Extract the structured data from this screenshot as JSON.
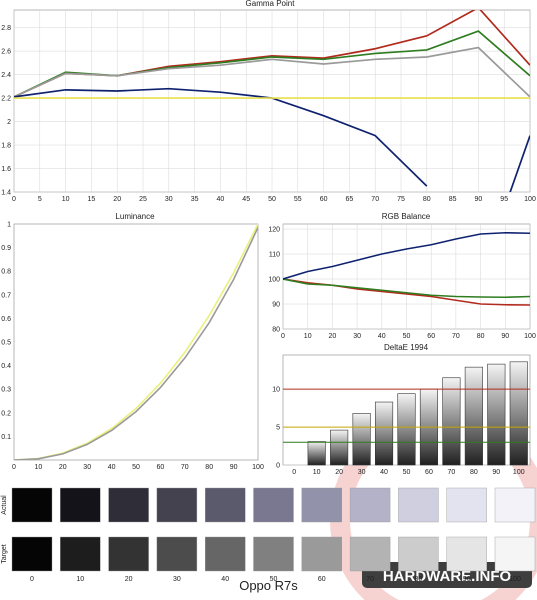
{
  "footer_label": "Oppo R7s",
  "watermark": {
    "text": "HARDWARE.INFO"
  },
  "colors": {
    "red": "#b22a1d",
    "green": "#2e7d1f",
    "gray": "#9a9a9a",
    "blue": "#0f2270",
    "yellow": "#e8e04a",
    "target": "#eaf07a"
  },
  "chart_data": [
    {
      "type": "line",
      "title": "Gamma Point",
      "x": [
        0,
        10,
        20,
        30,
        40,
        50,
        60,
        70,
        80,
        90,
        100
      ],
      "xticks": [
        0,
        5,
        10,
        15,
        20,
        25,
        30,
        35,
        40,
        45,
        50,
        55,
        60,
        65,
        70,
        75,
        80,
        85,
        90,
        95,
        100
      ],
      "yticks": [
        1.4,
        1.6,
        1.8,
        2,
        2.2,
        2.4,
        2.6,
        2.8
      ],
      "xlim": [
        0,
        100
      ],
      "ylim": [
        1.4,
        2.95
      ],
      "grid": true,
      "series": [
        {
          "color": "red",
          "values": [
            2.21,
            2.41,
            2.39,
            2.47,
            2.51,
            2.56,
            2.54,
            2.62,
            2.73,
            2.97,
            2.48
          ]
        },
        {
          "color": "green",
          "values": [
            2.21,
            2.42,
            2.39,
            2.46,
            2.5,
            2.55,
            2.53,
            2.58,
            2.61,
            2.77,
            2.39
          ]
        },
        {
          "color": "gray",
          "values": [
            2.21,
            2.41,
            2.39,
            2.45,
            2.48,
            2.53,
            2.49,
            2.53,
            2.55,
            2.63,
            2.21
          ]
        },
        {
          "color": "blue",
          "values": [
            2.21,
            2.27,
            2.26,
            2.28,
            2.25,
            2.2,
            2.05,
            1.88,
            1.45,
            null,
            1.88
          ],
          "extra_points": [
            [
              96,
              1.38
            ],
            [
              100,
              1.88
            ]
          ]
        },
        {
          "color": "yellow",
          "values": [
            2.2,
            2.2,
            2.2,
            2.2,
            2.2,
            2.2,
            2.2,
            2.2,
            2.2,
            2.2,
            2.2
          ]
        }
      ]
    },
    {
      "type": "line",
      "title": "Luminance",
      "x": [
        0,
        10,
        20,
        30,
        40,
        50,
        60,
        70,
        80,
        90,
        100
      ],
      "xticks": [
        0,
        10,
        20,
        30,
        40,
        50,
        60,
        70,
        80,
        90,
        100
      ],
      "yticks": [
        0.1,
        0.2,
        0.3,
        0.4,
        0.5,
        0.6,
        0.7,
        0.8,
        0.9,
        1
      ],
      "xlim": [
        0,
        100
      ],
      "ylim": [
        0,
        1
      ],
      "grid": false,
      "series": [
        {
          "color": "target",
          "values": [
            0,
            0.006,
            0.029,
            0.071,
            0.133,
            0.218,
            0.325,
            0.456,
            0.612,
            0.793,
            1.0
          ]
        },
        {
          "color": "gray",
          "values": [
            0,
            0.005,
            0.026,
            0.066,
            0.125,
            0.205,
            0.307,
            0.432,
            0.582,
            0.765,
            0.985
          ]
        }
      ]
    },
    {
      "type": "line",
      "title": "RGB Balance",
      "x": [
        0,
        10,
        20,
        30,
        40,
        50,
        60,
        70,
        80,
        90,
        100
      ],
      "xticks": [
        0,
        10,
        20,
        30,
        40,
        50,
        60,
        70,
        80,
        90,
        100
      ],
      "yticks": [
        80,
        90,
        100,
        110,
        120
      ],
      "xlim": [
        0,
        100
      ],
      "ylim": [
        80,
        122
      ],
      "grid": true,
      "series": [
        {
          "color": "red",
          "values": [
            100,
            98.5,
            97.5,
            96,
            95,
            94,
            93,
            91.5,
            90,
            89.7,
            89.6
          ]
        },
        {
          "color": "green",
          "values": [
            100,
            98,
            97.5,
            96.5,
            95.5,
            94.5,
            93.5,
            93,
            92.8,
            92.7,
            93
          ]
        },
        {
          "color": "blue",
          "values": [
            100,
            103,
            105,
            107.5,
            110,
            112,
            113.7,
            116,
            118,
            118.5,
            118.3
          ]
        }
      ]
    },
    {
      "type": "bar",
      "title": "DeltaE 1994",
      "categories": [
        "0",
        "10",
        "20",
        "30",
        "40",
        "50",
        "60",
        "70",
        "80",
        "90",
        "100"
      ],
      "values": [
        0,
        3.1,
        4.6,
        6.8,
        8.3,
        9.4,
        10.0,
        11.5,
        12.9,
        13.3,
        13.6
      ],
      "yticks": [
        0,
        5,
        10
      ],
      "ylim": [
        0,
        14.5
      ],
      "grid": true,
      "reference_lines": [
        {
          "value": 10,
          "color": "red"
        },
        {
          "value": 5,
          "color": "#c8a600"
        },
        {
          "value": 3,
          "color": "green"
        }
      ]
    }
  ],
  "swatches": {
    "row_labels": [
      "Actual",
      "Target"
    ],
    "labels": [
      "0",
      "10",
      "20",
      "30",
      "40",
      "50",
      "60",
      "70",
      "80",
      "90",
      "100"
    ],
    "actual": [
      "#050505",
      "#14131a",
      "#2e2d38",
      "#44424f",
      "#5b596c",
      "#7a7890",
      "#9292aa",
      "#b3b2c8",
      "#cfcfe0",
      "#e3e3ef",
      "#f2f2f8"
    ],
    "target": [
      "#050505",
      "#1d1d1d",
      "#333333",
      "#4c4c4c",
      "#666666",
      "#808080",
      "#9a9a9a",
      "#b3b3b3",
      "#cccccc",
      "#e5e5e5",
      "#f5f5f5"
    ]
  }
}
